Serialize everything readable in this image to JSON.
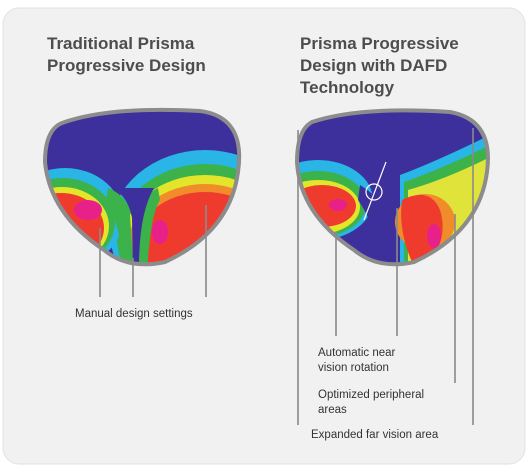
{
  "left": {
    "title": [
      "Traditional Prisma",
      "Progressive Design"
    ],
    "labels": [
      "Manual design settings"
    ]
  },
  "right": {
    "title": [
      "Prisma Progressive",
      "Design with DAFD",
      "Technology"
    ],
    "labels": [
      [
        "Automatic near",
        "vision rotation"
      ],
      [
        "Optimized peripheral",
        "areas"
      ],
      [
        "Expanded far vision area"
      ]
    ]
  }
}
